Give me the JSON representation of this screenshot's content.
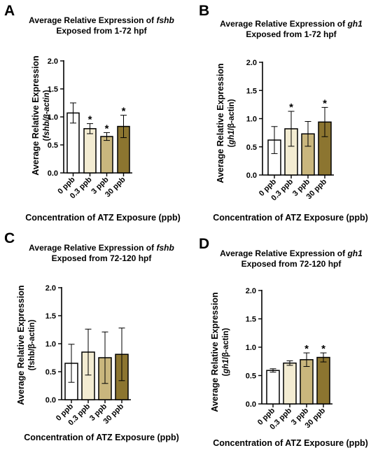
{
  "colors": {
    "bar_fills": [
      "#ffffff",
      "#f3ecd2",
      "#c9b67d",
      "#8c7530"
    ],
    "axis": "#000000"
  },
  "chart_data": [
    {
      "panel": "A",
      "type": "bar",
      "title_pre": "Average Relative Expression of ",
      "title_gene": "fshb",
      "title_line2": "Exposed from 1-72 hpf",
      "ylabel_line1": "Average Relative Expression",
      "ylabel_line2_pre": "(",
      "ylabel_line2_it": "fshb/β-actin",
      "ylabel_line2_post": ")",
      "xlabel": "Concentration of ATZ Exposure (ppb)",
      "categories": [
        "0 ppb",
        "0.3 ppb",
        "3 ppb",
        "30 ppb"
      ],
      "values": [
        1.07,
        0.79,
        0.65,
        0.83
      ],
      "errors": [
        0.18,
        0.09,
        0.07,
        0.2
      ],
      "significant": [
        false,
        true,
        true,
        true
      ],
      "star": "*",
      "ylim": [
        0,
        2.0
      ],
      "yticks": [
        "0.0",
        "0.5",
        "1.0",
        "1.5",
        "2.0"
      ]
    },
    {
      "panel": "B",
      "type": "bar",
      "title_pre": "Average Relative Expression of ",
      "title_gene": "gh1",
      "title_line2": "Exposed from 1-72 hpf",
      "ylabel_line1": "Average Relative Expression",
      "ylabel_line2_pre": "(",
      "ylabel_line2_it": "gh1",
      "ylabel_line2_post": "/β-actin)",
      "xlabel": "Concentration of ATZ Exposure (ppb)",
      "categories": [
        "0 ppb",
        "0.3 ppb",
        "3 ppb",
        "30 ppb"
      ],
      "values": [
        0.62,
        0.82,
        0.73,
        0.94
      ],
      "errors": [
        0.24,
        0.31,
        0.22,
        0.26
      ],
      "significant": [
        false,
        true,
        false,
        true
      ],
      "star": "*",
      "ylim": [
        0,
        2.0
      ],
      "yticks": [
        "0.0",
        "0.5",
        "1.0",
        "1.5",
        "2.0"
      ]
    },
    {
      "panel": "C",
      "type": "bar",
      "title_pre": "Average Relative Expression of ",
      "title_gene": "fshb",
      "title_line2": "Exposed from 72-120 hpf",
      "ylabel_line1": "Average Relative Expression",
      "ylabel_line2_pre": "(",
      "ylabel_line2_it": "",
      "ylabel_line2_post": "fshb/β-actin)",
      "xlabel": "Concentration of ATZ Exposure (ppb)",
      "categories": [
        "0 ppb",
        "0.3 ppb",
        "3 ppb",
        "30 ppb"
      ],
      "values": [
        0.65,
        0.85,
        0.75,
        0.81
      ],
      "errors": [
        0.34,
        0.41,
        0.46,
        0.47
      ],
      "significant": [
        false,
        false,
        false,
        false
      ],
      "star": "*",
      "ylim": [
        0,
        2.0
      ],
      "yticks": [
        "0.0",
        "0.5",
        "1.0",
        "1.5",
        "2.0"
      ]
    },
    {
      "panel": "D",
      "type": "bar",
      "title_pre": "Average Relative Expression of ",
      "title_gene": "gh1",
      "title_line2": "Exposed from 72-120 hpf",
      "ylabel_line1": "Average Relative Expression",
      "ylabel_line2_pre": "(",
      "ylabel_line2_it": "gh1",
      "ylabel_line2_post": "/β-actin)",
      "xlabel": "Concentration of ATZ Exposure (ppb)",
      "categories": [
        "0 ppb",
        "0.3 ppb",
        "3 ppb",
        "30 ppb"
      ],
      "values": [
        0.59,
        0.72,
        0.78,
        0.82
      ],
      "errors": [
        0.03,
        0.04,
        0.12,
        0.08
      ],
      "significant": [
        false,
        false,
        true,
        true
      ],
      "star": "*",
      "ylim": [
        0,
        2.0
      ],
      "yticks": [
        "0.0",
        "0.5",
        "1.0",
        "1.5",
        "2.0"
      ]
    }
  ]
}
